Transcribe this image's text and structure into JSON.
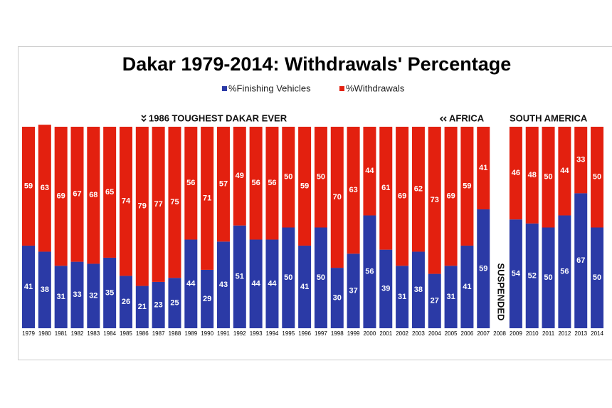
{
  "chart_data": {
    "type": "stacked_bar",
    "title": "Dakar 1979-2014: Withdrawals' Percentage",
    "categories": [
      "1979",
      "1980",
      "1981",
      "1982",
      "1983",
      "1984",
      "1985",
      "1986",
      "1987",
      "1988",
      "1989",
      "1990",
      "1991",
      "1992",
      "1993",
      "1994",
      "1995",
      "1996",
      "1997",
      "1998",
      "1999",
      "2000",
      "2001",
      "2002",
      "2003",
      "2004",
      "2005",
      "2006",
      "2007",
      "2008",
      "2009",
      "2010",
      "2011",
      "2012",
      "2013",
      "2014"
    ],
    "series": [
      {
        "name": "%Finishing Vehicles",
        "color": "#2b3aa6",
        "values": [
          41,
          38,
          31,
          33,
          32,
          35,
          26,
          21,
          23,
          25,
          44,
          29,
          43,
          51,
          44,
          44,
          50,
          41,
          50,
          30,
          37,
          56,
          39,
          31,
          38,
          27,
          31,
          41,
          59,
          null,
          54,
          52,
          50,
          56,
          67,
          50
        ]
      },
      {
        "name": "%Withdrawals",
        "color": "#e3200f",
        "values": [
          59,
          63,
          69,
          67,
          68,
          65,
          74,
          79,
          77,
          75,
          56,
          71,
          57,
          49,
          56,
          56,
          50,
          59,
          50,
          70,
          63,
          44,
          61,
          69,
          62,
          73,
          69,
          59,
          41,
          null,
          46,
          48,
          50,
          44,
          33,
          50
        ]
      }
    ],
    "ylim": [
      0,
      100
    ],
    "annotations": [
      "1986 TOUGHEST DAKAR EVER",
      "AFRICA",
      "SOUTH AMERICA",
      "SUSPENDED"
    ]
  }
}
